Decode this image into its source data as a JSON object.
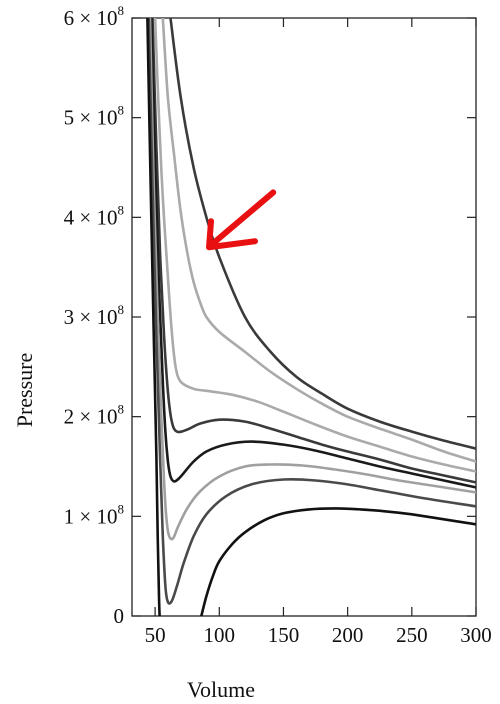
{
  "chart_data": {
    "type": "line",
    "title": "",
    "xlabel": "Volume",
    "ylabel": "Pressure",
    "xlim": [
      32,
      300
    ],
    "ylim": [
      0,
      600000000
    ],
    "grid": false,
    "legend": "none",
    "x_ticks": [
      50,
      100,
      150,
      200,
      250,
      300
    ],
    "y_ticks": [
      {
        "value": 0,
        "mantissa": "0",
        "base": "",
        "exponent": ""
      },
      {
        "value": 100000000,
        "mantissa": "1",
        "base": " × 10",
        "exponent": "8"
      },
      {
        "value": 200000000,
        "mantissa": "2",
        "base": " × 10",
        "exponent": "8"
      },
      {
        "value": 300000000,
        "mantissa": "3",
        "base": " × 10",
        "exponent": "8"
      },
      {
        "value": 400000000,
        "mantissa": "4",
        "base": " × 10",
        "exponent": "8"
      },
      {
        "value": 500000000,
        "mantissa": "5",
        "base": " × 10",
        "exponent": "8"
      },
      {
        "value": 600000000,
        "mantissa": "6",
        "base": " × 10",
        "exponent": "8"
      }
    ],
    "annotations": [
      {
        "type": "arrow",
        "color": "#e81010",
        "from": [
          142,
          425000000
        ],
        "to": [
          92,
          370000000
        ]
      }
    ],
    "series": [
      {
        "color": "#3a3a3a",
        "points": [
          [
            62,
            600000000
          ],
          [
            70,
            520000000
          ],
          [
            80,
            450000000
          ],
          [
            90,
            400000000
          ],
          [
            100,
            360000000
          ],
          [
            120,
            300000000
          ],
          [
            140,
            265000000
          ],
          [
            160,
            240000000
          ],
          [
            180,
            223000000
          ],
          [
            200,
            208000000
          ],
          [
            225,
            195000000
          ],
          [
            250,
            185000000
          ],
          [
            275,
            176000000
          ],
          [
            300,
            168000000
          ]
        ]
      },
      {
        "color": "#aaaaaa",
        "points": [
          [
            56,
            600000000
          ],
          [
            60,
            520000000
          ],
          [
            65,
            460000000
          ],
          [
            70,
            405000000
          ],
          [
            75,
            365000000
          ],
          [
            80,
            335000000
          ],
          [
            85,
            315000000
          ],
          [
            90,
            300000000
          ],
          [
            100,
            285000000
          ],
          [
            120,
            265000000
          ],
          [
            140,
            245000000
          ],
          [
            160,
            228000000
          ],
          [
            180,
            213000000
          ],
          [
            200,
            200000000
          ],
          [
            225,
            188000000
          ],
          [
            250,
            177000000
          ],
          [
            275,
            165000000
          ],
          [
            300,
            155000000
          ]
        ]
      },
      {
        "color": "#aaaaaa",
        "points": [
          [
            50,
            600000000
          ],
          [
            53,
            500000000
          ],
          [
            56,
            420000000
          ],
          [
            60,
            340000000
          ],
          [
            63,
            285000000
          ],
          [
            66,
            250000000
          ],
          [
            70,
            235000000
          ],
          [
            80,
            228000000
          ],
          [
            90,
            226000000
          ],
          [
            110,
            222000000
          ],
          [
            130,
            215000000
          ],
          [
            150,
            205000000
          ],
          [
            175,
            192000000
          ],
          [
            200,
            180000000
          ],
          [
            225,
            170000000
          ],
          [
            250,
            160000000
          ],
          [
            275,
            152000000
          ],
          [
            300,
            145000000
          ]
        ]
      },
      {
        "color": "#3a3a3a",
        "points": [
          [
            48,
            600000000
          ],
          [
            51,
            470000000
          ],
          [
            54,
            360000000
          ],
          [
            57,
            280000000
          ],
          [
            60,
            225000000
          ],
          [
            63,
            195000000
          ],
          [
            67,
            185000000
          ],
          [
            75,
            187000000
          ],
          [
            85,
            193000000
          ],
          [
            100,
            197000000
          ],
          [
            120,
            195000000
          ],
          [
            140,
            188000000
          ],
          [
            160,
            180000000
          ],
          [
            180,
            172000000
          ],
          [
            200,
            165000000
          ],
          [
            225,
            157000000
          ],
          [
            250,
            148000000
          ],
          [
            275,
            141000000
          ],
          [
            300,
            134000000
          ]
        ]
      },
      {
        "color": "#1a1a1a",
        "points": [
          [
            47,
            600000000
          ],
          [
            50,
            450000000
          ],
          [
            53,
            330000000
          ],
          [
            56,
            235000000
          ],
          [
            58,
            185000000
          ],
          [
            60,
            155000000
          ],
          [
            62,
            140000000
          ],
          [
            65,
            135000000
          ],
          [
            70,
            140000000
          ],
          [
            80,
            155000000
          ],
          [
            90,
            165000000
          ],
          [
            105,
            172000000
          ],
          [
            125,
            175000000
          ],
          [
            150,
            172000000
          ],
          [
            175,
            166000000
          ],
          [
            200,
            158000000
          ],
          [
            225,
            150000000
          ],
          [
            250,
            143000000
          ],
          [
            275,
            136000000
          ],
          [
            300,
            129000000
          ]
        ]
      },
      {
        "color": "#a0a0a0",
        "points": [
          [
            46,
            600000000
          ],
          [
            49,
            430000000
          ],
          [
            52,
            300000000
          ],
          [
            55,
            195000000
          ],
          [
            57,
            135000000
          ],
          [
            59,
            95000000
          ],
          [
            61,
            80000000
          ],
          [
            64,
            78000000
          ],
          [
            68,
            90000000
          ],
          [
            75,
            108000000
          ],
          [
            85,
            125000000
          ],
          [
            100,
            140000000
          ],
          [
            120,
            150000000
          ],
          [
            140,
            152000000
          ],
          [
            165,
            151000000
          ],
          [
            190,
            147000000
          ],
          [
            215,
            142000000
          ],
          [
            240,
            136000000
          ],
          [
            270,
            130000000
          ],
          [
            300,
            124000000
          ]
        ]
      },
      {
        "color": "#4a4a4a",
        "points": [
          [
            45,
            600000000
          ],
          [
            48,
            430000000
          ],
          [
            51,
            280000000
          ],
          [
            54,
            155000000
          ],
          [
            56,
            80000000
          ],
          [
            58,
            30000000
          ],
          [
            60,
            14000000
          ],
          [
            63,
            15000000
          ],
          [
            67,
            30000000
          ],
          [
            72,
            52000000
          ],
          [
            80,
            80000000
          ],
          [
            90,
            102000000
          ],
          [
            105,
            120000000
          ],
          [
            125,
            132000000
          ],
          [
            150,
            137000000
          ],
          [
            175,
            136000000
          ],
          [
            200,
            132000000
          ],
          [
            230,
            125000000
          ],
          [
            260,
            118000000
          ],
          [
            300,
            110000000
          ]
        ]
      },
      {
        "color": "#111111",
        "points": [
          [
            44,
            600000000
          ],
          [
            47,
            400000000
          ],
          [
            49,
            280000000
          ],
          [
            51,
            160000000
          ],
          [
            52,
            80000000
          ],
          [
            53,
            20000000
          ],
          [
            53.5,
            0
          ]
        ]
      },
      {
        "color": "#111111",
        "points": [
          [
            86,
            0
          ],
          [
            90,
            20000000
          ],
          [
            95,
            40000000
          ],
          [
            100,
            55000000
          ],
          [
            110,
            72000000
          ],
          [
            120,
            84000000
          ],
          [
            135,
            96000000
          ],
          [
            150,
            103000000
          ],
          [
            170,
            107000000
          ],
          [
            190,
            108000000
          ],
          [
            210,
            107000000
          ],
          [
            230,
            105000000
          ],
          [
            250,
            102000000
          ],
          [
            275,
            97000000
          ],
          [
            300,
            92000000
          ]
        ]
      }
    ]
  }
}
